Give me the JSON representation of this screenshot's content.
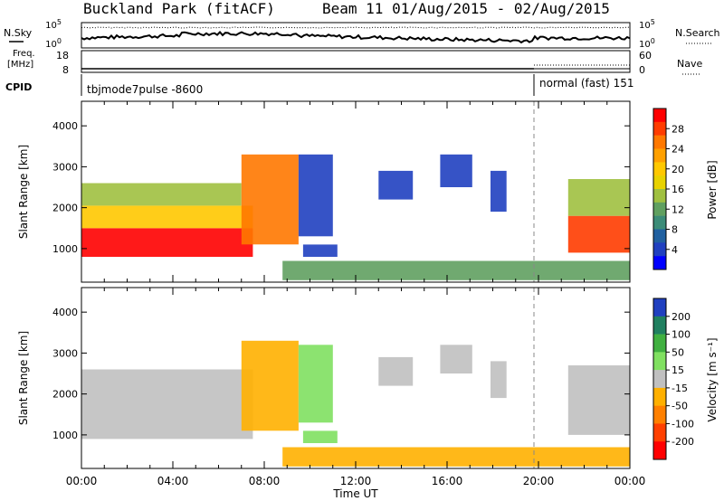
{
  "header": {
    "station": "Buckland Park (fitACF)",
    "beam": "Beam 11 01/Aug/2015 - 02/Aug/2015"
  },
  "strip_labels": {
    "nsky": "N.Sky",
    "nsearch": "N.Search",
    "freq": "Freq.",
    "mhz": "[MHz]",
    "cpid": "CPID",
    "nave": "Nave",
    "noise_top_tick": "10^5",
    "noise_bottom_tick": "10^0",
    "freq_top_tick": "18",
    "freq_bottom_tick": "8",
    "nave_top_tick": "60",
    "nave_bottom_tick": "0"
  },
  "cpid_labels": {
    "first": "tbjmode7pulse -8600",
    "second": "normal (fast) 151"
  },
  "axes": {
    "xlabel": "Time UT",
    "ylabel": "Slant Range [km]",
    "xticks": [
      "00:00",
      "04:00",
      "08:00",
      "12:00",
      "16:00",
      "20:00",
      "00:00"
    ],
    "yticks": [
      "1000",
      "2000",
      "3000",
      "4000"
    ]
  },
  "colorbars": {
    "power": {
      "label": "Power [dB]",
      "ticks": [
        "28",
        "24",
        "20",
        "16",
        "12",
        "8",
        "4"
      ],
      "colors": [
        "#ff0000",
        "#ff3c00",
        "#ff7800",
        "#ffa000",
        "#ffc800",
        "#e8d200",
        "#a0c040",
        "#60a060",
        "#3c8c78",
        "#2060a0",
        "#2040c0",
        "#0000ff"
      ]
    },
    "velocity": {
      "label": "Velocity [m s⁻¹]",
      "ticks": [
        "200",
        "100",
        "50",
        "15",
        "-15",
        "-50",
        "-100",
        "-200"
      ],
      "colors": [
        "#2040c0",
        "#208060",
        "#40b040",
        "#80e060",
        "#c0c0c0",
        "#ffb000",
        "#ff8000",
        "#ff4000",
        "#ff0000"
      ]
    }
  },
  "chart_data": [
    {
      "type": "heatmap",
      "title": "",
      "xlabel": "Time UT",
      "ylabel": "Slant Range [km]",
      "colorbar": "Power [dB]",
      "xlim": [
        0,
        24
      ],
      "ylim": [
        180,
        4600
      ],
      "clim": [
        2,
        32
      ],
      "regions": [
        {
          "t0": 0.0,
          "t1": 7.5,
          "r0": 800,
          "r1": 1500,
          "value": 30
        },
        {
          "t0": 0.0,
          "t1": 7.5,
          "r0": 1500,
          "r1": 2050,
          "value": 22
        },
        {
          "t0": 0.0,
          "t1": 7.0,
          "r0": 2050,
          "r1": 2600,
          "value": 17
        },
        {
          "t0": 7.0,
          "t1": 9.5,
          "r0": 1100,
          "r1": 3300,
          "value": 25
        },
        {
          "t0": 9.5,
          "t1": 11.0,
          "r0": 1300,
          "r1": 3300,
          "value": 5
        },
        {
          "t0": 9.7,
          "t1": 11.2,
          "r0": 800,
          "r1": 1100,
          "value": 6
        },
        {
          "t0": 13.0,
          "t1": 14.5,
          "r0": 2200,
          "r1": 2900,
          "value": 5
        },
        {
          "t0": 15.7,
          "t1": 17.1,
          "r0": 2500,
          "r1": 3300,
          "value": 5
        },
        {
          "t0": 17.9,
          "t1": 18.6,
          "r0": 1900,
          "r1": 2900,
          "value": 5
        },
        {
          "t0": 8.8,
          "t1": 24.0,
          "r0": 230,
          "r1": 700,
          "value": 14
        },
        {
          "t0": 21.3,
          "t1": 24.0,
          "r0": 900,
          "r1": 1800,
          "value": 29
        },
        {
          "t0": 21.3,
          "t1": 24.0,
          "r0": 1800,
          "r1": 2700,
          "value": 17
        }
      ],
      "beam": 11,
      "period": "01/Aug/2015 - 02/Aug/2015"
    },
    {
      "type": "heatmap",
      "title": "",
      "xlabel": "Time UT",
      "ylabel": "Slant Range [km]",
      "colorbar": "Velocity [m s⁻¹]",
      "xlim": [
        0,
        24
      ],
      "ylim": [
        180,
        4600
      ],
      "clim": [
        -250,
        250
      ],
      "regions": [
        {
          "t0": 0.0,
          "t1": 7.5,
          "r0": 900,
          "r1": 2600,
          "value": 0
        },
        {
          "t0": 7.0,
          "t1": 9.5,
          "r0": 1100,
          "r1": 3300,
          "value": -40
        },
        {
          "t0": 9.5,
          "t1": 11.0,
          "r0": 1300,
          "r1": 3200,
          "value": 30
        },
        {
          "t0": 9.7,
          "t1": 11.2,
          "r0": 800,
          "r1": 1100,
          "value": 40
        },
        {
          "t0": 13.0,
          "t1": 14.5,
          "r0": 2200,
          "r1": 2900,
          "value": 20
        },
        {
          "t0": 15.7,
          "t1": 17.1,
          "r0": 2500,
          "r1": 3200,
          "value": -20
        },
        {
          "t0": 17.9,
          "t1": 18.6,
          "r0": 1900,
          "r1": 2800,
          "value": 0
        },
        {
          "t0": 8.8,
          "t1": 24.0,
          "r0": 230,
          "r1": 700,
          "value": -50
        },
        {
          "t0": 21.3,
          "t1": 24.0,
          "r0": 1000,
          "r1": 2700,
          "value": 0
        }
      ]
    }
  ]
}
